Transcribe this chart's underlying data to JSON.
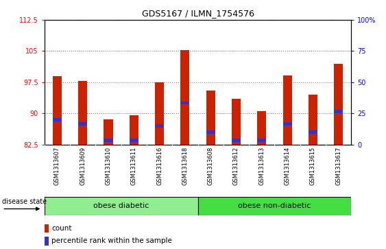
{
  "title": "GDS5167 / ILMN_1754576",
  "samples": [
    "GSM1313607",
    "GSM1313609",
    "GSM1313610",
    "GSM1313611",
    "GSM1313616",
    "GSM1313618",
    "GSM1313608",
    "GSM1313612",
    "GSM1313613",
    "GSM1313614",
    "GSM1313615",
    "GSM1313617"
  ],
  "count_values": [
    99.0,
    97.8,
    88.5,
    89.5,
    97.5,
    105.2,
    95.5,
    93.5,
    90.5,
    99.2,
    94.5,
    102.0
  ],
  "percentile_values": [
    88.5,
    87.5,
    83.5,
    83.5,
    87.0,
    92.5,
    85.5,
    83.5,
    83.5,
    87.5,
    85.5,
    90.5
  ],
  "ymin": 82.5,
  "ymax": 112.5,
  "yticks_left": [
    82.5,
    90.0,
    97.5,
    105.0,
    112.5
  ],
  "yticks_right_vals": [
    "0",
    "25",
    "50",
    "75",
    "100%"
  ],
  "bar_color": "#cc2200",
  "percentile_color": "#3333cc",
  "group1_label": "obese diabetic",
  "group2_label": "obese non-diabetic",
  "group1_count": 6,
  "group2_count": 6,
  "group_color1": "#90ee90",
  "group_color2": "#44dd44",
  "tick_bg_color": "#cccccc",
  "disease_label": "disease state",
  "legend_count": "count",
  "legend_percentile": "percentile rank within the sample",
  "bar_width": 0.35
}
